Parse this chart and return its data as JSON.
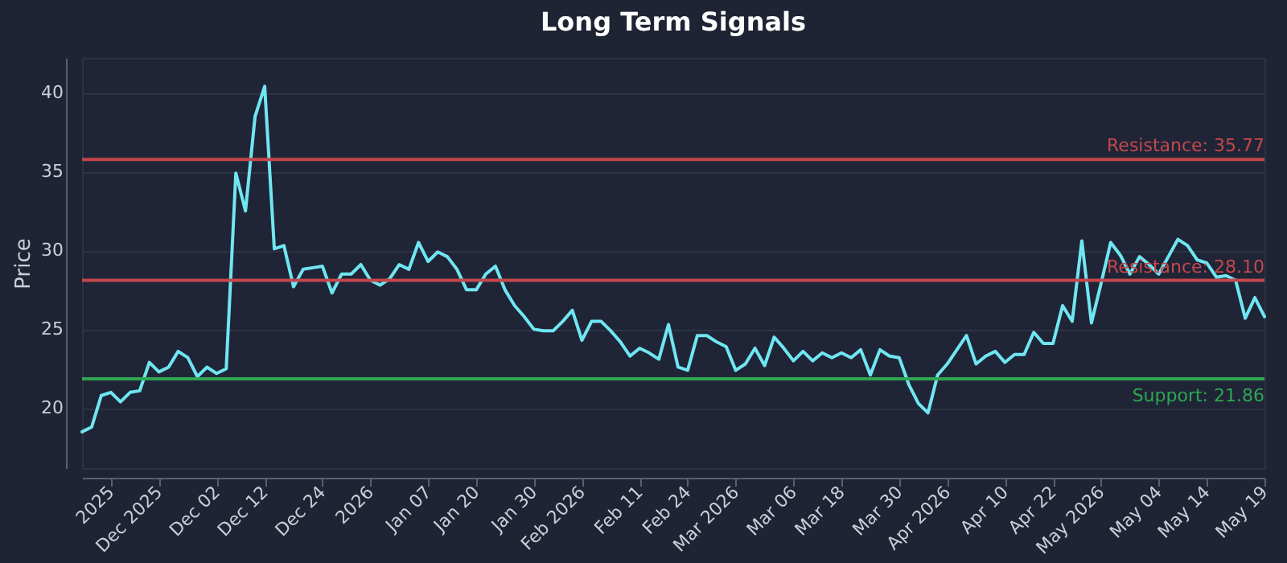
{
  "chart_data": {
    "type": "line",
    "title": "Long Term Signals",
    "ylabel": "Price",
    "categories": [
      null,
      null,
      null,
      "2025",
      null,
      null,
      null,
      null,
      "Dec 2025",
      null,
      null,
      null,
      null,
      null,
      "Dec 02",
      null,
      null,
      null,
      null,
      "Dec 12",
      null,
      null,
      null,
      null,
      null,
      "Dec 24",
      null,
      null,
      null,
      null,
      "2026",
      null,
      null,
      null,
      null,
      null,
      "Jan 07",
      null,
      null,
      null,
      null,
      "Jan 20",
      null,
      null,
      null,
      null,
      null,
      "Jan 30",
      null,
      null,
      null,
      null,
      "Feb 2026",
      null,
      null,
      null,
      null,
      null,
      "Feb 11",
      null,
      null,
      null,
      null,
      "Feb 24",
      null,
      null,
      null,
      null,
      "Mar 2026",
      null,
      null,
      null,
      null,
      null,
      "Mar 06",
      null,
      null,
      null,
      null,
      "Mar 18",
      null,
      null,
      null,
      null,
      null,
      "Mar 30",
      null,
      null,
      null,
      null,
      "Apr 2026",
      null,
      null,
      null,
      null,
      null,
      "Apr 10",
      null,
      null,
      null,
      null,
      "Apr 22",
      null,
      null,
      null,
      null,
      "May 2026",
      null,
      null,
      null,
      null,
      null,
      "May 04",
      null,
      null,
      null,
      null,
      "May 14",
      null,
      null,
      null,
      null,
      null,
      "May 19"
    ],
    "series": [
      {
        "color": "#6fe6f2",
        "values": [
          18.5,
          18.8,
          20.8,
          21.0,
          20.4,
          21.0,
          21.1,
          22.9,
          22.3,
          22.6,
          23.6,
          23.2,
          22.0,
          22.6,
          22.2,
          22.5,
          34.9,
          32.5,
          38.5,
          40.4,
          30.1,
          30.3,
          27.7,
          28.8,
          28.9,
          29.0,
          27.3,
          28.5,
          28.5,
          29.1,
          28.1,
          27.8,
          28.2,
          29.1,
          28.8,
          30.5,
          29.3,
          29.9,
          29.6,
          28.8,
          27.5,
          27.5,
          28.5,
          29.0,
          27.5,
          26.5,
          25.8,
          25.0,
          24.9,
          24.9,
          25.5,
          26.2,
          24.3,
          25.5,
          25.5,
          24.9,
          24.2,
          23.3,
          23.8,
          23.5,
          23.1,
          25.3,
          22.6,
          22.4,
          24.6,
          24.6,
          24.2,
          23.9,
          22.4,
          22.8,
          23.8,
          22.7,
          24.5,
          23.8,
          23.0,
          23.6,
          23.0,
          23.5,
          23.2,
          23.5,
          23.2,
          23.7,
          22.1,
          23.7,
          23.3,
          23.2,
          21.5,
          20.3,
          19.7,
          22.1,
          22.8,
          23.7,
          24.6,
          22.8,
          23.3,
          23.6,
          22.9,
          23.4,
          23.4,
          24.8,
          24.1,
          24.1,
          26.5,
          25.5,
          30.6,
          25.4,
          27.9,
          30.5,
          29.7,
          28.5,
          29.6,
          29.1,
          28.5,
          29.6,
          30.7,
          30.3,
          29.4,
          29.2,
          28.3,
          28.4,
          28.1,
          25.7,
          27.0,
          25.8
        ]
      }
    ],
    "ylim": [
      16.2,
      42.2
    ],
    "yticks": [
      20,
      25,
      30,
      35,
      40
    ],
    "grid": "y",
    "ref_lines": [
      {
        "axis": "y",
        "value": 35.77,
        "label": "Resistance: 35.77",
        "color": "#c4474d"
      },
      {
        "axis": "y",
        "value": 28.1,
        "label": "Resistance: 28.10",
        "color": "#c4474d"
      },
      {
        "axis": "y",
        "value": 21.86,
        "label": "Support: 21.86",
        "color": "#2fa653"
      }
    ]
  }
}
